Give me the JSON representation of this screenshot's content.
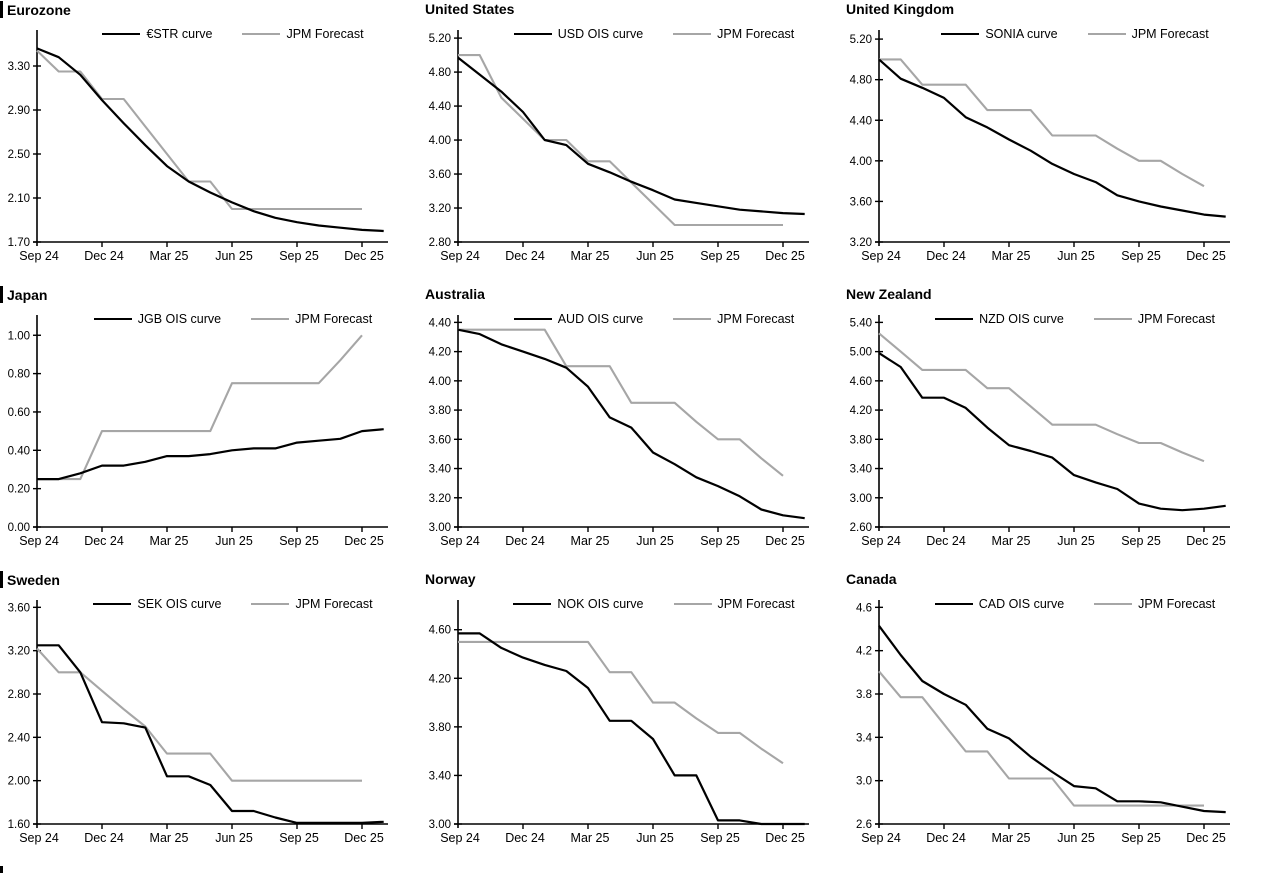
{
  "colors": {
    "curve": "#000000",
    "forecast": "#a6a6a6"
  },
  "chart_data": [
    {
      "type": "line",
      "title": "Eurozone",
      "x_tick_labels": [
        "Sep 24",
        "Dec 24",
        "Mar 25",
        "Jun 25",
        "Sep 25",
        "Dec 25"
      ],
      "x_tick_positions": [
        0,
        3,
        6,
        9,
        12,
        15
      ],
      "x_months": [
        "Sep 24",
        "Oct 24",
        "Nov 24",
        "Dec 24",
        "Jan 25",
        "Feb 25",
        "Mar 25",
        "Apr 25",
        "May 25",
        "Jun 25",
        "Jul 25",
        "Aug 25",
        "Sep 25",
        "Oct 25",
        "Nov 25",
        "Dec 25"
      ],
      "y_tick_labels": [
        "1.70",
        "2.10",
        "2.50",
        "2.90",
        "3.30"
      ],
      "y_tick_values": [
        1.7,
        2.1,
        2.5,
        2.9,
        3.3
      ],
      "ylim": [
        1.7,
        3.6
      ],
      "legend_position": "top-center",
      "series": [
        {
          "name": "€STR curve",
          "color": "#000000",
          "values": [
            3.46,
            3.38,
            3.22,
            2.99,
            2.78,
            2.58,
            2.39,
            2.25,
            2.15,
            2.06,
            1.98,
            1.92,
            1.88,
            1.85,
            1.83,
            1.81,
            1.8
          ]
        },
        {
          "name": "JPM Forecast",
          "color": "#a6a6a6",
          "values": [
            3.44,
            3.25,
            3.25,
            3.0,
            3.0,
            2.75,
            2.5,
            2.25,
            2.25,
            2.0,
            2.0,
            2.0,
            2.0,
            2.0,
            2.0,
            2.0
          ]
        }
      ]
    },
    {
      "type": "line",
      "title": "United States",
      "x_tick_labels": [
        "Sep 24",
        "Dec 24",
        "Mar 25",
        "Jun 25",
        "Sep 25",
        "Dec 25"
      ],
      "x_tick_positions": [
        0,
        3,
        6,
        9,
        12,
        15
      ],
      "x_months": [
        "Sep 24",
        "Oct 24",
        "Nov 24",
        "Dec 24",
        "Jan 25",
        "Feb 25",
        "Mar 25",
        "Apr 25",
        "May 25",
        "Jun 25",
        "Jul 25",
        "Aug 25",
        "Sep 25",
        "Oct 25",
        "Nov 25",
        "Dec 25"
      ],
      "y_tick_labels": [
        "2.80",
        "3.20",
        "3.60",
        "4.00",
        "4.40",
        "4.80",
        "5.20"
      ],
      "y_tick_values": [
        2.8,
        3.2,
        3.6,
        4.0,
        4.4,
        4.8,
        5.2
      ],
      "ylim": [
        2.8,
        5.26
      ],
      "legend_position": "top-center",
      "series": [
        {
          "name": "USD OIS curve",
          "color": "#000000",
          "values": [
            4.97,
            4.77,
            4.57,
            4.33,
            4.0,
            3.94,
            3.72,
            3.62,
            3.51,
            3.41,
            3.3,
            3.26,
            3.22,
            3.18,
            3.16,
            3.14,
            3.13
          ]
        },
        {
          "name": "JPM Forecast",
          "color": "#a6a6a6",
          "values": [
            5.0,
            5.0,
            4.5,
            4.25,
            4.0,
            4.0,
            3.75,
            3.75,
            3.5,
            3.25,
            3.0,
            3.0,
            3.0,
            3.0,
            3.0,
            3.0
          ]
        }
      ]
    },
    {
      "type": "line",
      "title": "United Kingdom",
      "x_tick_labels": [
        "Sep 24",
        "Dec 24",
        "Mar 25",
        "Jun 25",
        "Sep 25",
        "Dec 25"
      ],
      "x_tick_positions": [
        0,
        3,
        6,
        9,
        12,
        15
      ],
      "x_months": [
        "Sep 24",
        "Oct 24",
        "Nov 24",
        "Dec 24",
        "Jan 25",
        "Feb 25",
        "Mar 25",
        "Apr 25",
        "May 25",
        "Jun 25",
        "Jul 25",
        "Aug 25",
        "Sep 25",
        "Oct 25",
        "Nov 25",
        "Dec 25"
      ],
      "y_tick_labels": [
        "3.20",
        "3.60",
        "4.00",
        "4.40",
        "4.80",
        "5.20"
      ],
      "y_tick_values": [
        3.2,
        3.6,
        4.0,
        4.4,
        4.8,
        5.2
      ],
      "ylim": [
        3.2,
        5.26
      ],
      "legend_position": "top-center",
      "series": [
        {
          "name": "SONIA curve",
          "color": "#000000",
          "values": [
            5.0,
            4.81,
            4.72,
            4.62,
            4.43,
            4.33,
            4.21,
            4.1,
            3.97,
            3.87,
            3.79,
            3.66,
            3.6,
            3.55,
            3.51,
            3.47,
            3.45
          ]
        },
        {
          "name": "JPM Forecast",
          "color": "#a6a6a6",
          "values": [
            5.0,
            5.0,
            4.75,
            4.75,
            4.75,
            4.5,
            4.5,
            4.5,
            4.25,
            4.25,
            4.25,
            4.12,
            4.0,
            4.0,
            3.87,
            3.75
          ]
        }
      ]
    },
    {
      "type": "line",
      "title": "Japan",
      "x_tick_labels": [
        "Sep 24",
        "Dec 24",
        "Mar 25",
        "Jun 25",
        "Sep 25",
        "Dec 25"
      ],
      "x_tick_positions": [
        0,
        3,
        6,
        9,
        12,
        15
      ],
      "x_months": [
        "Sep 24",
        "Oct 24",
        "Nov 24",
        "Dec 24",
        "Jan 25",
        "Feb 25",
        "Mar 25",
        "Apr 25",
        "May 25",
        "Jun 25",
        "Jul 25",
        "Aug 25",
        "Sep 25",
        "Oct 25",
        "Nov 25",
        "Dec 25"
      ],
      "y_tick_labels": [
        "0.00",
        "0.20",
        "0.40",
        "0.60",
        "0.80",
        "1.00"
      ],
      "y_tick_values": [
        0.0,
        0.2,
        0.4,
        0.6,
        0.8,
        1.0
      ],
      "ylim": [
        0.0,
        1.09
      ],
      "legend_position": "top-center",
      "series": [
        {
          "name": "JGB OIS curve",
          "color": "#000000",
          "values": [
            0.25,
            0.25,
            0.28,
            0.32,
            0.32,
            0.34,
            0.37,
            0.37,
            0.38,
            0.4,
            0.41,
            0.41,
            0.44,
            0.45,
            0.46,
            0.5,
            0.51
          ]
        },
        {
          "name": "JPM Forecast",
          "color": "#a6a6a6",
          "values": [
            0.25,
            0.25,
            0.25,
            0.5,
            0.5,
            0.5,
            0.5,
            0.5,
            0.5,
            0.75,
            0.75,
            0.75,
            0.75,
            0.75,
            0.87,
            1.0
          ]
        }
      ]
    },
    {
      "type": "line",
      "title": "Australia",
      "x_tick_labels": [
        "Sep 24",
        "Dec 24",
        "Mar 25",
        "Jun 25",
        "Sep 25",
        "Dec 25"
      ],
      "x_tick_positions": [
        0,
        3,
        6,
        9,
        12,
        15
      ],
      "x_months": [
        "Sep 24",
        "Oct 24",
        "Nov 24",
        "Dec 24",
        "Jan 25",
        "Feb 25",
        "Mar 25",
        "Apr 25",
        "May 25",
        "Jun 25",
        "Jul 25",
        "Aug 25",
        "Sep 25",
        "Oct 25",
        "Nov 25",
        "Dec 25"
      ],
      "y_tick_labels": [
        "3.00",
        "3.20",
        "3.40",
        "3.60",
        "3.80",
        "4.00",
        "4.20",
        "4.40"
      ],
      "y_tick_values": [
        3.0,
        3.2,
        3.4,
        3.6,
        3.8,
        4.0,
        4.2,
        4.4
      ],
      "ylim": [
        3.0,
        4.43
      ],
      "legend_position": "top-center",
      "series": [
        {
          "name": "AUD OIS curve",
          "color": "#000000",
          "values": [
            4.35,
            4.32,
            4.25,
            4.2,
            4.15,
            4.09,
            3.96,
            3.75,
            3.68,
            3.51,
            3.43,
            3.34,
            3.28,
            3.21,
            3.12,
            3.08,
            3.06
          ]
        },
        {
          "name": "JPM Forecast",
          "color": "#a6a6a6",
          "values": [
            4.35,
            4.35,
            4.35,
            4.35,
            4.35,
            4.1,
            4.1,
            4.1,
            3.85,
            3.85,
            3.85,
            3.72,
            3.6,
            3.6,
            3.47,
            3.35
          ]
        }
      ]
    },
    {
      "type": "line",
      "title": "New Zealand",
      "x_tick_labels": [
        "Sep 24",
        "Dec 24",
        "Mar 25",
        "Jun 25",
        "Sep 25",
        "Dec 25"
      ],
      "x_tick_positions": [
        0,
        3,
        6,
        9,
        12,
        15
      ],
      "x_months": [
        "Sep 24",
        "Oct 24",
        "Nov 24",
        "Dec 24",
        "Jan 25",
        "Feb 25",
        "Mar 25",
        "Apr 25",
        "May 25",
        "Jun 25",
        "Jul 25",
        "Aug 25",
        "Sep 25",
        "Oct 25",
        "Nov 25",
        "Dec 25"
      ],
      "y_tick_labels": [
        "2.60",
        "3.00",
        "3.40",
        "3.80",
        "4.20",
        "4.60",
        "5.00",
        "5.40"
      ],
      "y_tick_values": [
        2.6,
        3.0,
        3.4,
        3.8,
        4.2,
        4.6,
        5.0,
        5.4
      ],
      "ylim": [
        2.6,
        5.46
      ],
      "legend_position": "top-center",
      "series": [
        {
          "name": "NZD OIS curve",
          "color": "#000000",
          "values": [
            4.98,
            4.79,
            4.37,
            4.37,
            4.23,
            3.96,
            3.72,
            3.64,
            3.55,
            3.31,
            3.21,
            3.12,
            2.92,
            2.85,
            2.83,
            2.85,
            2.89
          ]
        },
        {
          "name": "JPM Forecast",
          "color": "#a6a6a6",
          "values": [
            5.25,
            5.0,
            4.75,
            4.75,
            4.75,
            4.5,
            4.5,
            4.25,
            4.0,
            4.0,
            4.0,
            3.87,
            3.75,
            3.75,
            3.62,
            3.5
          ]
        }
      ]
    },
    {
      "type": "line",
      "title": "Sweden",
      "x_tick_labels": [
        "Sep 24",
        "Dec 24",
        "Mar 25",
        "Jun 25",
        "Sep 25",
        "Dec 25"
      ],
      "x_tick_positions": [
        0,
        3,
        6,
        9,
        12,
        15
      ],
      "x_months": [
        "Sep 24",
        "Oct 24",
        "Nov 24",
        "Dec 24",
        "Jan 25",
        "Feb 25",
        "Mar 25",
        "Apr 25",
        "May 25",
        "Jun 25",
        "Jul 25",
        "Aug 25",
        "Sep 25",
        "Oct 25",
        "Nov 25",
        "Dec 25"
      ],
      "y_tick_labels": [
        "1.60",
        "2.00",
        "2.40",
        "2.80",
        "3.20",
        "3.60"
      ],
      "y_tick_values": [
        1.6,
        2.0,
        2.4,
        2.8,
        3.2,
        3.6
      ],
      "ylim": [
        1.6,
        3.64
      ],
      "legend_position": "top-center",
      "series": [
        {
          "name": "SEK OIS curve",
          "color": "#000000",
          "values": [
            3.25,
            3.25,
            3.0,
            2.54,
            2.53,
            2.49,
            2.04,
            2.04,
            1.96,
            1.72,
            1.72,
            1.66,
            1.61,
            1.61,
            1.61,
            1.61,
            1.62
          ]
        },
        {
          "name": "JPM Forecast",
          "color": "#a6a6a6",
          "values": [
            3.22,
            3.0,
            3.0,
            2.83,
            2.66,
            2.5,
            2.25,
            2.25,
            2.25,
            2.0,
            2.0,
            2.0,
            2.0,
            2.0,
            2.0,
            2.0
          ]
        }
      ]
    },
    {
      "type": "line",
      "title": "Norway",
      "x_tick_labels": [
        "Sep 24",
        "Dec 24",
        "Mar 25",
        "Jun 25",
        "Sep 25",
        "Dec 25"
      ],
      "x_tick_positions": [
        0,
        3,
        6,
        9,
        12,
        15
      ],
      "x_months": [
        "Sep 24",
        "Oct 24",
        "Nov 24",
        "Dec 24",
        "Jan 25",
        "Feb 25",
        "Mar 25",
        "Apr 25",
        "May 25",
        "Jun 25",
        "Jul 25",
        "Aug 25",
        "Sep 25",
        "Oct 25",
        "Nov 25",
        "Dec 25"
      ],
      "y_tick_labels": [
        "3.00",
        "3.40",
        "3.80",
        "4.20",
        "4.60"
      ],
      "y_tick_values": [
        3.0,
        3.4,
        3.8,
        4.2,
        4.6
      ],
      "ylim": [
        3.0,
        4.82
      ],
      "legend_position": "top-center",
      "series": [
        {
          "name": "NOK OIS curve",
          "color": "#000000",
          "values": [
            4.57,
            4.57,
            4.45,
            4.37,
            4.31,
            4.26,
            4.12,
            3.85,
            3.85,
            3.7,
            3.4,
            3.4,
            3.03,
            3.03,
            3.0,
            3.0,
            3.0
          ]
        },
        {
          "name": "JPM Forecast",
          "color": "#a6a6a6",
          "values": [
            4.5,
            4.5,
            4.5,
            4.5,
            4.5,
            4.5,
            4.5,
            4.25,
            4.25,
            4.0,
            4.0,
            3.87,
            3.75,
            3.75,
            3.62,
            3.5
          ]
        }
      ]
    },
    {
      "type": "line",
      "title": "Canada",
      "x_tick_labels": [
        "Sep 24",
        "Dec 24",
        "Mar 25",
        "Jun 25",
        "Sep 25",
        "Dec 25"
      ],
      "x_tick_positions": [
        0,
        3,
        6,
        9,
        12,
        15
      ],
      "x_months": [
        "Sep 24",
        "Oct 24",
        "Nov 24",
        "Dec 24",
        "Jan 25",
        "Feb 25",
        "Mar 25",
        "Apr 25",
        "May 25",
        "Jun 25",
        "Jul 25",
        "Aug 25",
        "Sep 25",
        "Oct 25",
        "Nov 25",
        "Dec 25"
      ],
      "y_tick_labels": [
        "2.6",
        "3.0",
        "3.4",
        "3.8",
        "4.2",
        "4.6"
      ],
      "y_tick_values": [
        2.6,
        3.0,
        3.4,
        3.8,
        4.2,
        4.6
      ],
      "ylim": [
        2.6,
        4.64
      ],
      "legend_position": "top-center",
      "series": [
        {
          "name": "CAD OIS curve",
          "color": "#000000",
          "values": [
            4.43,
            4.16,
            3.92,
            3.8,
            3.7,
            3.48,
            3.39,
            3.22,
            3.08,
            2.95,
            2.93,
            2.81,
            2.81,
            2.8,
            2.76,
            2.72,
            2.71
          ]
        },
        {
          "name": "JPM Forecast",
          "color": "#a6a6a6",
          "values": [
            4.01,
            3.77,
            3.77,
            3.52,
            3.27,
            3.27,
            3.02,
            3.02,
            3.02,
            2.77,
            2.77,
            2.77,
            2.77,
            2.77,
            2.77,
            2.77
          ]
        }
      ]
    }
  ]
}
